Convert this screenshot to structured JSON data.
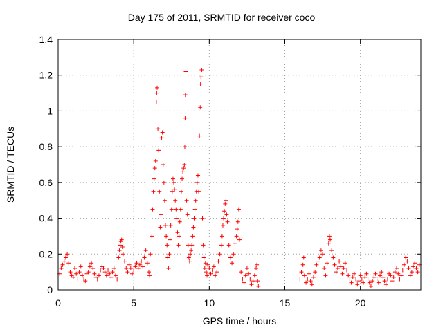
{
  "chart_data": {
    "type": "scatter",
    "title": "Day 175 of 2011, SRMTID for receiver coco",
    "xlabel": "GPS time / hours",
    "ylabel": "SRMTID / TECUs",
    "xlim": [
      0,
      24
    ],
    "ylim": [
      0,
      1.4
    ],
    "xticks": [
      0,
      5,
      10,
      15,
      20
    ],
    "yticks": [
      0,
      0.2,
      0.4,
      0.6,
      0.8,
      1,
      1.2,
      1.4
    ],
    "ytick_labels": [
      "0",
      "0.2",
      "0.4",
      "0.6",
      "0.8",
      "1",
      "1.2",
      "1.4"
    ],
    "grid": true,
    "marker": "+",
    "color": "#ff0000",
    "series": [
      {
        "name": "SRMTID",
        "points": [
          [
            0.0,
            0.06
          ],
          [
            0.1,
            0.09
          ],
          [
            0.2,
            0.12
          ],
          [
            0.3,
            0.14
          ],
          [
            0.4,
            0.16
          ],
          [
            0.5,
            0.18
          ],
          [
            0.6,
            0.2
          ],
          [
            0.7,
            0.15
          ],
          [
            0.8,
            0.1
          ],
          [
            0.9,
            0.08
          ],
          [
            1.0,
            0.07
          ],
          [
            1.1,
            0.12
          ],
          [
            1.2,
            0.09
          ],
          [
            1.3,
            0.06
          ],
          [
            1.4,
            0.1
          ],
          [
            1.5,
            0.13
          ],
          [
            1.6,
            0.08
          ],
          [
            1.7,
            0.06
          ],
          [
            1.8,
            0.05
          ],
          [
            1.9,
            0.09
          ],
          [
            2.0,
            0.1
          ],
          [
            2.1,
            0.13
          ],
          [
            2.2,
            0.15
          ],
          [
            2.3,
            0.12
          ],
          [
            2.4,
            0.09
          ],
          [
            2.5,
            0.07
          ],
          [
            2.6,
            0.06
          ],
          [
            2.7,
            0.08
          ],
          [
            2.8,
            0.11
          ],
          [
            2.9,
            0.13
          ],
          [
            3.0,
            0.12
          ],
          [
            3.1,
            0.1
          ],
          [
            3.2,
            0.08
          ],
          [
            3.3,
            0.11
          ],
          [
            3.4,
            0.09
          ],
          [
            3.5,
            0.07
          ],
          [
            3.6,
            0.1
          ],
          [
            3.7,
            0.12
          ],
          [
            3.8,
            0.08
          ],
          [
            3.9,
            0.06
          ],
          [
            4.0,
            0.18
          ],
          [
            4.05,
            0.22
          ],
          [
            4.1,
            0.25
          ],
          [
            4.15,
            0.27
          ],
          [
            4.2,
            0.28
          ],
          [
            4.25,
            0.24
          ],
          [
            4.3,
            0.2
          ],
          [
            4.4,
            0.16
          ],
          [
            4.5,
            0.12
          ],
          [
            4.6,
            0.1
          ],
          [
            4.7,
            0.14
          ],
          [
            4.8,
            0.12
          ],
          [
            4.9,
            0.09
          ],
          [
            5.0,
            0.11
          ],
          [
            5.1,
            0.13
          ],
          [
            5.2,
            0.15
          ],
          [
            5.3,
            0.12
          ],
          [
            5.4,
            0.14
          ],
          [
            5.5,
            0.16
          ],
          [
            5.6,
            0.13
          ],
          [
            5.7,
            0.18
          ],
          [
            5.8,
            0.22
          ],
          [
            5.9,
            0.15
          ],
          [
            6.0,
            0.1
          ],
          [
            6.05,
            0.08
          ],
          [
            6.1,
            0.2
          ],
          [
            6.2,
            0.3
          ],
          [
            6.25,
            0.45
          ],
          [
            6.3,
            0.55
          ],
          [
            6.35,
            0.62
          ],
          [
            6.4,
            0.68
          ],
          [
            6.45,
            0.72
          ],
          [
            6.5,
            1.05
          ],
          [
            6.52,
            1.1
          ],
          [
            6.55,
            1.13
          ],
          [
            6.6,
            0.9
          ],
          [
            6.65,
            0.78
          ],
          [
            6.7,
            0.55
          ],
          [
            6.75,
            0.35
          ],
          [
            6.8,
            0.42
          ],
          [
            6.85,
            0.85
          ],
          [
            6.9,
            0.88
          ],
          [
            6.95,
            0.7
          ],
          [
            7.0,
            0.6
          ],
          [
            7.05,
            0.5
          ],
          [
            7.1,
            0.36
          ],
          [
            7.15,
            0.3
          ],
          [
            7.2,
            0.25
          ],
          [
            7.25,
            0.18
          ],
          [
            7.3,
            0.12
          ],
          [
            7.35,
            0.2
          ],
          [
            7.4,
            0.28
          ],
          [
            7.45,
            0.36
          ],
          [
            7.5,
            0.45
          ],
          [
            7.55,
            0.55
          ],
          [
            7.6,
            0.62
          ],
          [
            7.65,
            0.6
          ],
          [
            7.7,
            0.56
          ],
          [
            7.75,
            0.5
          ],
          [
            7.8,
            0.45
          ],
          [
            7.85,
            0.4
          ],
          [
            7.9,
            0.32
          ],
          [
            7.95,
            0.25
          ],
          [
            8.0,
            0.3
          ],
          [
            8.05,
            0.38
          ],
          [
            8.1,
            0.45
          ],
          [
            8.15,
            0.55
          ],
          [
            8.2,
            0.62
          ],
          [
            8.25,
            0.66
          ],
          [
            8.3,
            0.68
          ],
          [
            8.35,
            0.7
          ],
          [
            8.38,
            0.8
          ],
          [
            8.4,
            0.96
          ],
          [
            8.42,
            1.09
          ],
          [
            8.45,
            1.22
          ],
          [
            8.5,
            0.5
          ],
          [
            8.55,
            0.42
          ],
          [
            8.6,
            0.25
          ],
          [
            8.65,
            0.18
          ],
          [
            8.7,
            0.16
          ],
          [
            8.75,
            0.2
          ],
          [
            8.8,
            0.22
          ],
          [
            8.85,
            0.25
          ],
          [
            8.9,
            0.3
          ],
          [
            8.95,
            0.35
          ],
          [
            9.0,
            0.4
          ],
          [
            9.05,
            0.45
          ],
          [
            9.1,
            0.5
          ],
          [
            9.15,
            0.55
          ],
          [
            9.2,
            0.6
          ],
          [
            9.25,
            0.64
          ],
          [
            9.3,
            0.55
          ],
          [
            9.35,
            0.86
          ],
          [
            9.4,
            1.02
          ],
          [
            9.42,
            1.15
          ],
          [
            9.45,
            1.19
          ],
          [
            9.5,
            1.23
          ],
          [
            9.55,
            0.4
          ],
          [
            9.6,
            0.25
          ],
          [
            9.65,
            0.18
          ],
          [
            9.7,
            0.12
          ],
          [
            9.75,
            0.15
          ],
          [
            9.8,
            0.1
          ],
          [
            9.85,
            0.08
          ],
          [
            9.9,
            0.14
          ],
          [
            10.0,
            0.12
          ],
          [
            10.1,
            0.09
          ],
          [
            10.2,
            0.11
          ],
          [
            10.3,
            0.13
          ],
          [
            10.4,
            0.08
          ],
          [
            10.5,
            0.1
          ],
          [
            10.6,
            0.16
          ],
          [
            10.7,
            0.2
          ],
          [
            10.8,
            0.25
          ],
          [
            10.85,
            0.3
          ],
          [
            10.9,
            0.36
          ],
          [
            10.95,
            0.4
          ],
          [
            11.0,
            0.44
          ],
          [
            11.05,
            0.48
          ],
          [
            11.1,
            0.5
          ],
          [
            11.15,
            0.42
          ],
          [
            11.2,
            0.38
          ],
          [
            11.3,
            0.25
          ],
          [
            11.4,
            0.18
          ],
          [
            11.5,
            0.15
          ],
          [
            11.6,
            0.2
          ],
          [
            11.7,
            0.26
          ],
          [
            11.8,
            0.3
          ],
          [
            11.85,
            0.34
          ],
          [
            11.9,
            0.38
          ],
          [
            11.95,
            0.45
          ],
          [
            12.0,
            0.28
          ],
          [
            12.1,
            0.1
          ],
          [
            12.2,
            0.06
          ],
          [
            12.3,
            0.04
          ],
          [
            12.4,
            0.08
          ],
          [
            12.5,
            0.12
          ],
          [
            12.6,
            0.09
          ],
          [
            12.7,
            0.06
          ],
          [
            12.8,
            0.03
          ],
          [
            12.9,
            0.05
          ],
          [
            13.0,
            0.08
          ],
          [
            13.1,
            0.12
          ],
          [
            13.15,
            0.14
          ],
          [
            13.2,
            0.05
          ],
          [
            13.25,
            0.02
          ],
          [
            16.0,
            0.06
          ],
          [
            16.1,
            0.1
          ],
          [
            16.2,
            0.14
          ],
          [
            16.25,
            0.18
          ],
          [
            16.3,
            0.08
          ],
          [
            16.4,
            0.04
          ],
          [
            16.5,
            0.06
          ],
          [
            16.6,
            0.09
          ],
          [
            16.7,
            0.05
          ],
          [
            16.8,
            0.03
          ],
          [
            16.9,
            0.07
          ],
          [
            17.0,
            0.1
          ],
          [
            17.1,
            0.14
          ],
          [
            17.2,
            0.16
          ],
          [
            17.3,
            0.18
          ],
          [
            17.4,
            0.22
          ],
          [
            17.5,
            0.2
          ],
          [
            17.6,
            0.12
          ],
          [
            17.7,
            0.08
          ],
          [
            17.8,
            0.15
          ],
          [
            17.9,
            0.26
          ],
          [
            17.95,
            0.3
          ],
          [
            18.0,
            0.28
          ],
          [
            18.1,
            0.22
          ],
          [
            18.2,
            0.18
          ],
          [
            18.3,
            0.14
          ],
          [
            18.4,
            0.1
          ],
          [
            18.5,
            0.12
          ],
          [
            18.6,
            0.16
          ],
          [
            18.7,
            0.13
          ],
          [
            18.8,
            0.09
          ],
          [
            18.9,
            0.12
          ],
          [
            19.0,
            0.15
          ],
          [
            19.1,
            0.11
          ],
          [
            19.2,
            0.08
          ],
          [
            19.3,
            0.06
          ],
          [
            19.4,
            0.04
          ],
          [
            19.5,
            0.07
          ],
          [
            19.6,
            0.09
          ],
          [
            19.7,
            0.06
          ],
          [
            19.8,
            0.03
          ],
          [
            19.9,
            0.05
          ],
          [
            20.0,
            0.08
          ],
          [
            20.1,
            0.06
          ],
          [
            20.2,
            0.04
          ],
          [
            20.3,
            0.07
          ],
          [
            20.4,
            0.09
          ],
          [
            20.5,
            0.06
          ],
          [
            20.6,
            0.04
          ],
          [
            20.7,
            0.02
          ],
          [
            20.8,
            0.05
          ],
          [
            20.9,
            0.07
          ],
          [
            21.0,
            0.09
          ],
          [
            21.1,
            0.06
          ],
          [
            21.2,
            0.04
          ],
          [
            21.3,
            0.08
          ],
          [
            21.4,
            0.1
          ],
          [
            21.5,
            0.07
          ],
          [
            21.6,
            0.05
          ],
          [
            21.7,
            0.03
          ],
          [
            21.8,
            0.06
          ],
          [
            21.9,
            0.09
          ],
          [
            22.0,
            0.08
          ],
          [
            22.1,
            0.05
          ],
          [
            22.2,
            0.07
          ],
          [
            22.3,
            0.1
          ],
          [
            22.4,
            0.12
          ],
          [
            22.5,
            0.09
          ],
          [
            22.6,
            0.06
          ],
          [
            22.7,
            0.08
          ],
          [
            22.8,
            0.11
          ],
          [
            22.9,
            0.14
          ],
          [
            23.0,
            0.18
          ],
          [
            23.1,
            0.16
          ],
          [
            23.2,
            0.12
          ],
          [
            23.3,
            0.08
          ],
          [
            23.4,
            0.1
          ],
          [
            23.5,
            0.13
          ],
          [
            23.6,
            0.15
          ],
          [
            23.7,
            0.12
          ],
          [
            23.8,
            0.1
          ],
          [
            23.9,
            0.14
          ]
        ]
      }
    ]
  }
}
